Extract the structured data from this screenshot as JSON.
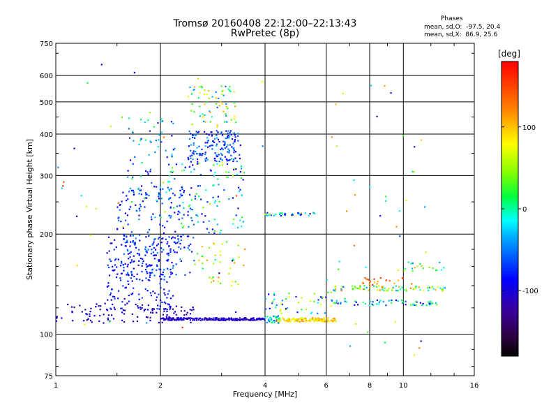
{
  "chart_data": {
    "type": "scatter",
    "title": "Tromsø 20160408 22:12:00–22:13:43",
    "subtitle": "RwPretec (8p)",
    "xlabel": "Frequency [MHz]",
    "ylabel": "Stationary phase Virtual Height [km]",
    "x_scale": "log",
    "y_scale": "log",
    "xlim": [
      1,
      16
    ],
    "ylim": [
      75,
      750
    ],
    "x_ticks": [
      1,
      2,
      4,
      6,
      8,
      10,
      16
    ],
    "y_ticks": [
      75,
      100,
      200,
      300,
      400,
      500,
      600,
      750
    ],
    "grid": true,
    "colorbar": {
      "label": "[deg]",
      "ticks": [
        -100,
        0,
        100
      ],
      "range": [
        -180,
        180
      ]
    },
    "stats": {
      "title": "Phases",
      "line_o": "mean, sd,O:  -97.5, 20.4",
      "line_x": "mean, sd,X:  86.9, 25.6"
    },
    "clusters": [
      {
        "f": [
          1.0,
          2.5
        ],
        "h": [
          108,
          124
        ],
        "phase": [
          -130,
          -95
        ],
        "n": 110
      },
      {
        "f": [
          1.4,
          2.2
        ],
        "h": [
          118,
          200
        ],
        "phase": [
          -110,
          -60
        ],
        "n": 220
      },
      {
        "f": [
          1.5,
          2.5
        ],
        "h": [
          150,
          280
        ],
        "phase": [
          -105,
          -40
        ],
        "n": 200
      },
      {
        "f": [
          1.6,
          2.2
        ],
        "h": [
          250,
          450
        ],
        "phase": [
          -100,
          30
        ],
        "n": 70
      },
      {
        "f": [
          2.4,
          3.4
        ],
        "h": [
          330,
          410
        ],
        "phase": [
          -110,
          -30
        ],
        "n": 160
      },
      {
        "f": [
          2.4,
          3.3
        ],
        "h": [
          420,
          560
        ],
        "phase": [
          -60,
          110
        ],
        "n": 70
      },
      {
        "f": [
          2.0,
          3.5
        ],
        "h": [
          200,
          330
        ],
        "phase": [
          -100,
          60
        ],
        "n": 120
      },
      {
        "f": [
          2.5,
          3.5
        ],
        "h": [
          140,
          190
        ],
        "phase": [
          0,
          120
        ],
        "n": 40
      },
      {
        "f": [
          2.0,
          4.0
        ],
        "h": [
          110,
          112
        ],
        "phase": [
          -120,
          -95
        ],
        "n": 220
      },
      {
        "f": [
          4.3,
          6.4
        ],
        "h": [
          109,
          112
        ],
        "phase": [
          60,
          120
        ],
        "n": 120
      },
      {
        "f": [
          4.0,
          4.4
        ],
        "h": [
          108,
          114
        ],
        "phase": [
          -60,
          20
        ],
        "n": 30
      },
      {
        "f": [
          4.0,
          6.2
        ],
        "h": [
          115,
          135
        ],
        "phase": [
          -100,
          80
        ],
        "n": 45
      },
      {
        "f": [
          4.0,
          5.6
        ],
        "h": [
          227,
          232
        ],
        "phase": [
          -110,
          100
        ],
        "n": 35
      },
      {
        "f": [
          6.2,
          13.5
        ],
        "h": [
          135,
          140
        ],
        "phase": [
          -60,
          130
        ],
        "n": 80
      },
      {
        "f": [
          6.2,
          12.5
        ],
        "h": [
          122,
          127
        ],
        "phase": [
          -110,
          40
        ],
        "n": 60
      },
      {
        "f": [
          7.6,
          10.0
        ],
        "h": [
          140,
          148
        ],
        "phase": [
          100,
          160
        ],
        "n": 20
      },
      {
        "f": [
          10.0,
          13.5
        ],
        "h": [
          155,
          165
        ],
        "phase": [
          -100,
          120
        ],
        "n": 18
      },
      {
        "f": [
          6.0,
          12.0
        ],
        "h": [
          85,
          600
        ],
        "phase": [
          -120,
          130
        ],
        "n": 45
      },
      {
        "f": [
          1.0,
          4.0
        ],
        "h": [
          100,
          700
        ],
        "phase": [
          -120,
          160
        ],
        "n": 45
      }
    ]
  }
}
